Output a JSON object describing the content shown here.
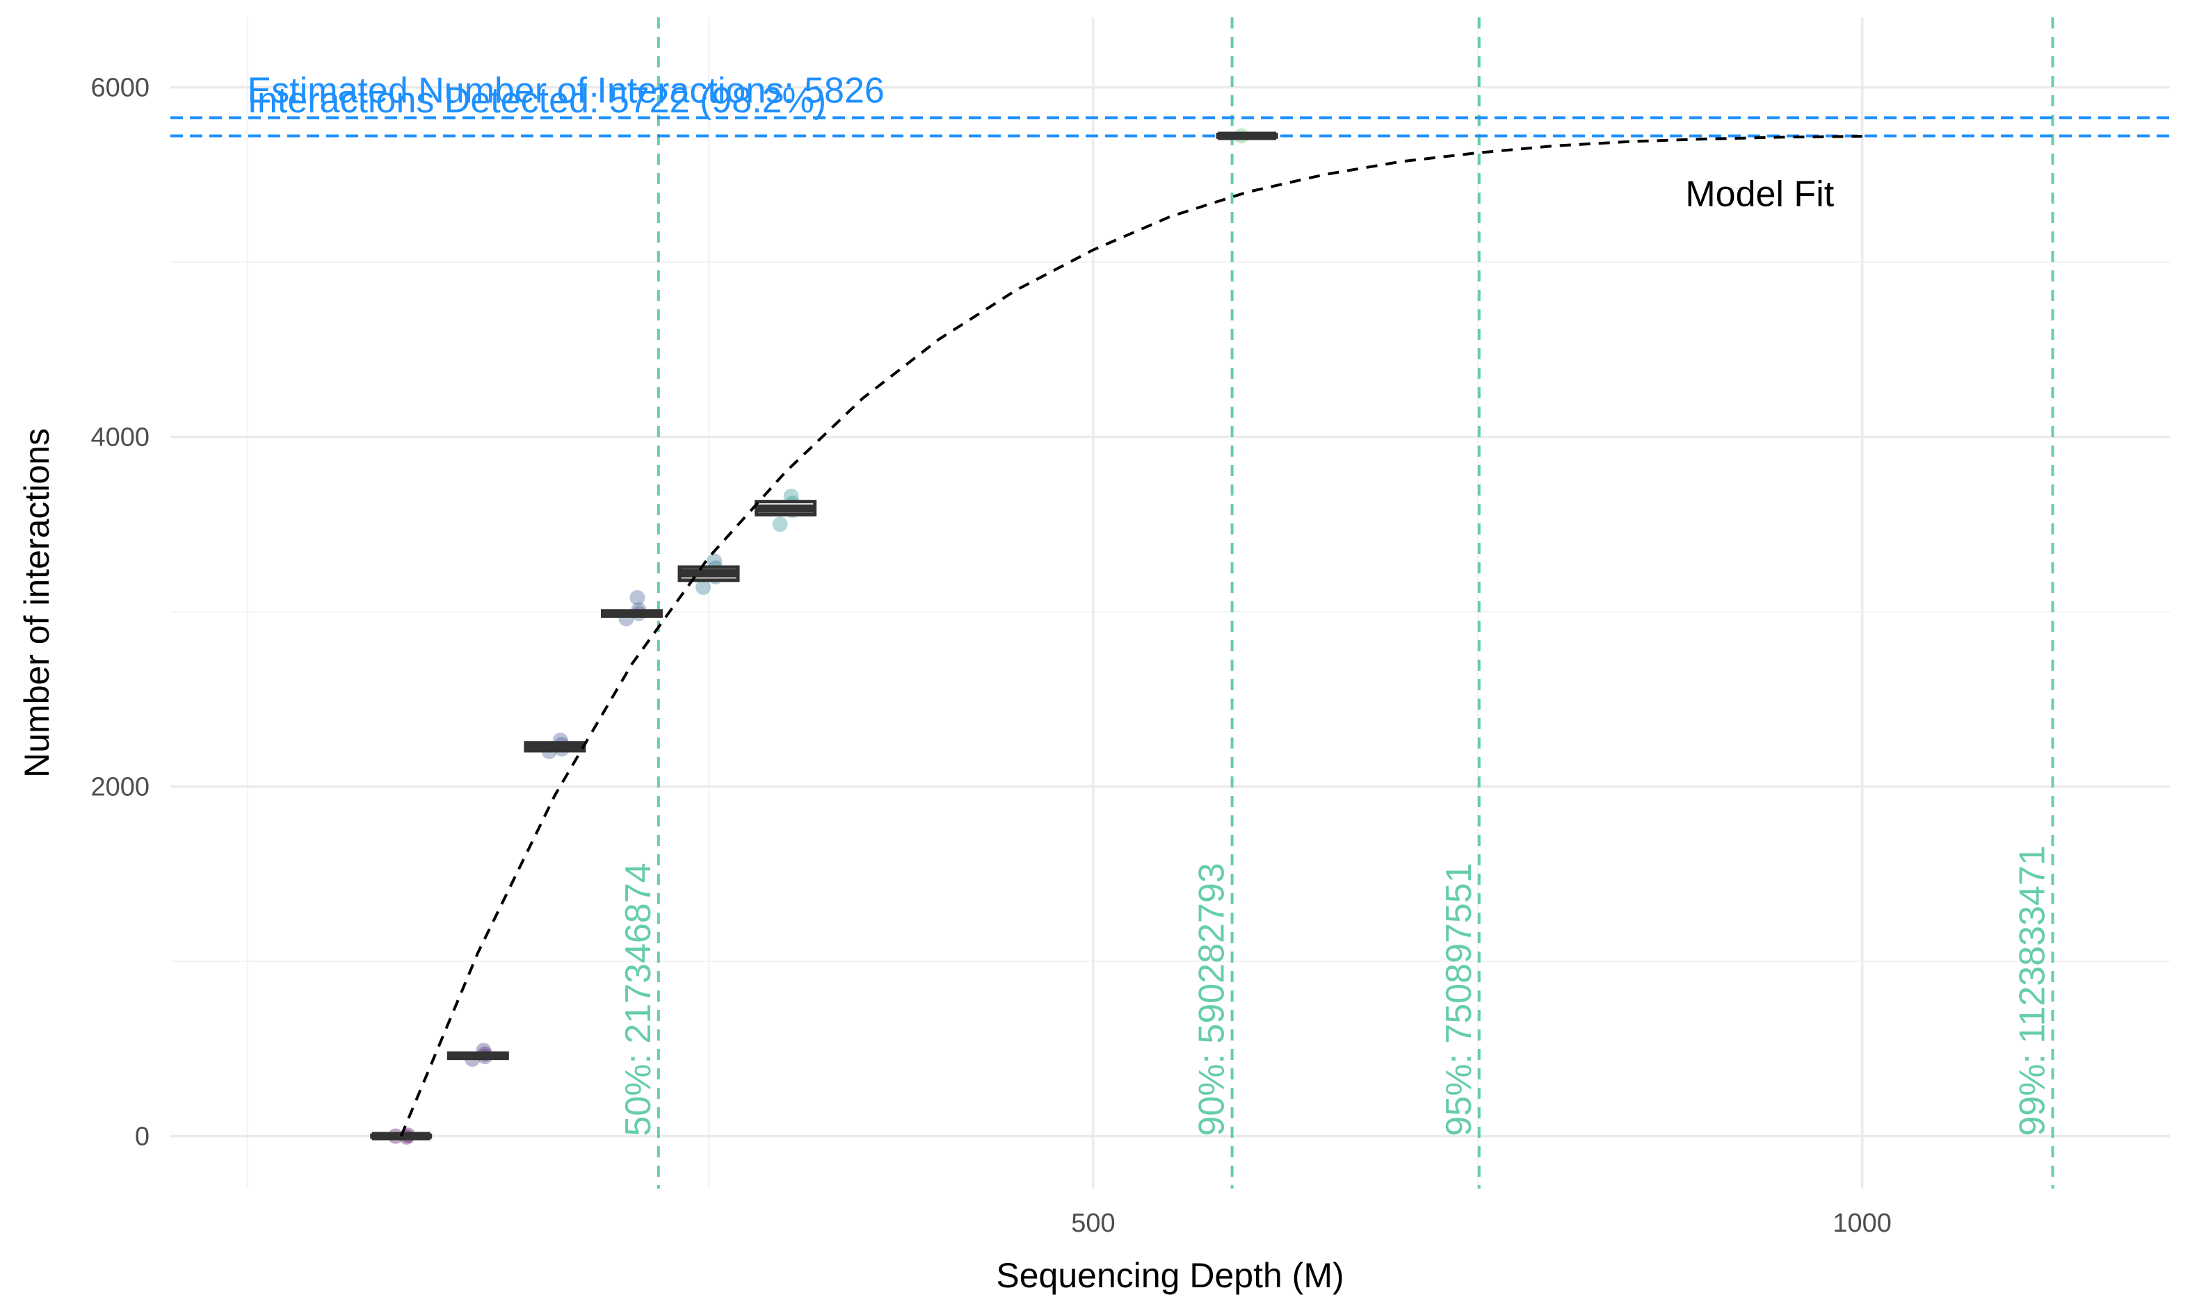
{
  "chart_data": {
    "type": "box+line",
    "title": "",
    "xlabel": "Sequencing Depth (M)",
    "ylabel": "Number of interactions",
    "xlim": [
      -100,
      1200
    ],
    "ylim": [
      -300,
      6400
    ],
    "x_ticks": [
      {
        "value": 500,
        "label": "500"
      },
      {
        "value": 1000,
        "label": "1000"
      }
    ],
    "y_ticks": [
      {
        "value": 0,
        "label": "0"
      },
      {
        "value": 2000,
        "label": "2000"
      },
      {
        "value": 4000,
        "label": "4000"
      },
      {
        "value": 6000,
        "label": "6000"
      }
    ],
    "x_minor": [
      -50,
      250,
      750
    ],
    "y_minor": [
      1000,
      3000,
      5000
    ],
    "boxes": [
      {
        "x": 50,
        "median": 0,
        "q1": -5,
        "q3": 5,
        "points": [
          0,
          5,
          -5
        ],
        "color": "#440154"
      },
      {
        "x": 100,
        "median": 460,
        "q1": 445,
        "q3": 475,
        "points": [
          440,
          470,
          490,
          455
        ],
        "color": "#472d7b"
      },
      {
        "x": 150,
        "median": 2230,
        "q1": 2205,
        "q3": 2250,
        "points": [
          2200,
          2240,
          2265,
          2215
        ],
        "color": "#3b528b"
      },
      {
        "x": 200,
        "median": 2990,
        "q1": 2975,
        "q3": 3005,
        "points": [
          2960,
          2990,
          3080,
          3010
        ],
        "color": "#3b528b"
      },
      {
        "x": 250,
        "median": 3220,
        "q1": 3180,
        "q3": 3255,
        "points": [
          3140,
          3200,
          3290,
          3250
        ],
        "color": "#2c728e"
      },
      {
        "x": 300,
        "median": 3590,
        "q1": 3555,
        "q3": 3630,
        "points": [
          3500,
          3580,
          3660,
          3620
        ],
        "color": "#21918c"
      },
      {
        "x": 600,
        "median": 5722,
        "q1": 5715,
        "q3": 5730,
        "points": [
          5722
        ],
        "color": "#5ec962"
      }
    ],
    "model_fit": {
      "label": "Model Fit",
      "x": [
        50,
        100,
        150,
        200,
        250,
        300,
        350,
        400,
        450,
        500,
        550,
        600,
        650,
        700,
        750,
        800,
        850,
        900,
        950,
        1000
      ],
      "y": [
        0,
        1050,
        1950,
        2700,
        3310,
        3800,
        4220,
        4560,
        4840,
        5070,
        5260,
        5400,
        5500,
        5575,
        5625,
        5665,
        5690,
        5705,
        5715,
        5720
      ]
    },
    "hlines": [
      {
        "y": 5826,
        "label": "Estimated Number of Interactions: 5826"
      },
      {
        "y": 5722,
        "label": "Interactions Detected: 5722 (98.2%)"
      }
    ],
    "vlines": [
      {
        "x": 217.346874,
        "label": "50%: 217346874"
      },
      {
        "x": 590.282793,
        "label": "90%: 590282793"
      },
      {
        "x": 750.897551,
        "label": "95%: 750897551"
      },
      {
        "x": 1123.833471,
        "label": "99%: 1123833471"
      }
    ]
  }
}
